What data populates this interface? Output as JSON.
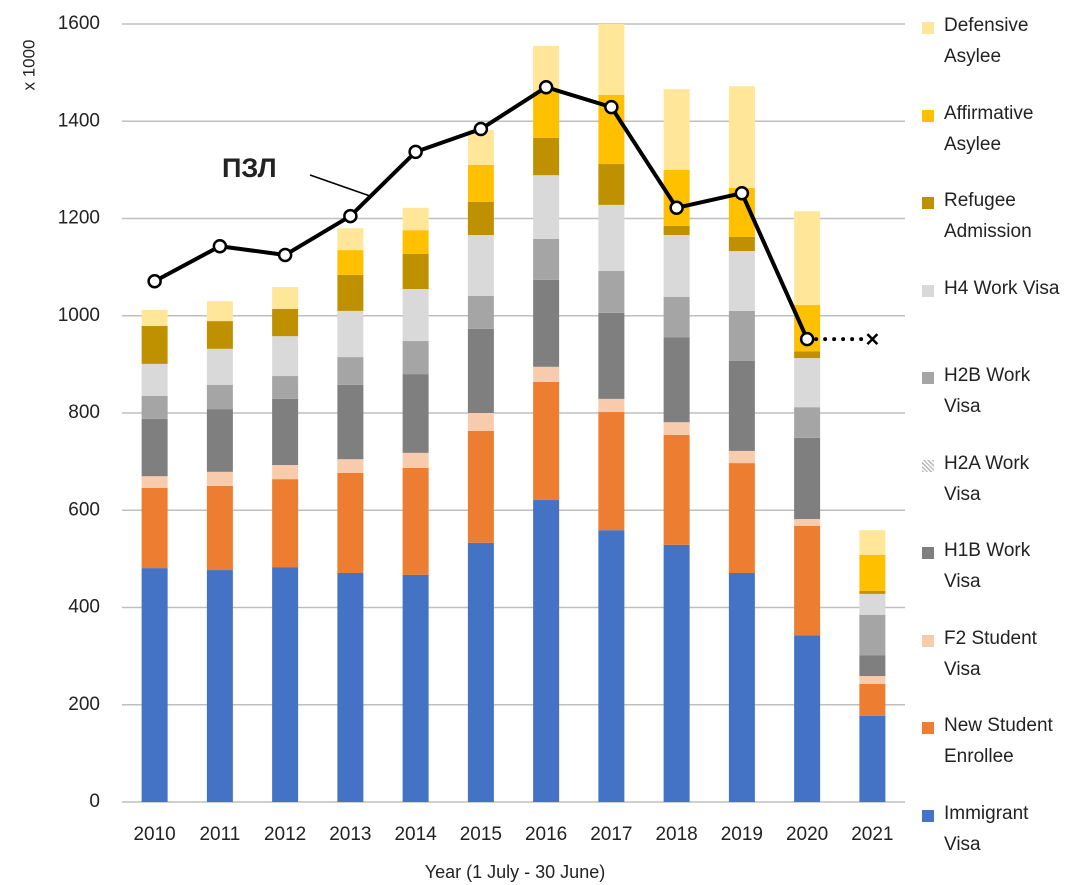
{
  "chart_data": {
    "type": "bar",
    "stacked": true,
    "y_axis_label": "x 1000",
    "x_axis_label": "Year (1 July - 30 June)",
    "categories": [
      "2010",
      "2011",
      "2012",
      "2013",
      "2014",
      "2015",
      "2016",
      "2017",
      "2018",
      "2019",
      "2020",
      "2021"
    ],
    "ylim": [
      0,
      1600
    ],
    "yticks": [
      0,
      200,
      400,
      600,
      800,
      1000,
      1200,
      1400,
      1600
    ],
    "grid": true,
    "legend": "right",
    "series": [
      {
        "name": "Immigrant Visa",
        "color": "#4472c4",
        "values": [
          481,
          477,
          483,
          471,
          467,
          533,
          621,
          559,
          529,
          471,
          343,
          177
        ]
      },
      {
        "name": "New Student Enrollee",
        "color": "#ed7d31",
        "values": [
          165,
          173,
          181,
          206,
          220,
          230,
          243,
          243,
          226,
          226,
          225,
          66
        ]
      },
      {
        "name": "F2 Student Visa",
        "color": "#f8cbad",
        "values": [
          24,
          29,
          29,
          28,
          31,
          37,
          31,
          27,
          26,
          25,
          14,
          16
        ]
      },
      {
        "name": "H1B Work Visa",
        "color": "#7f7f7f",
        "values": [
          118,
          129,
          136,
          153,
          162,
          173,
          179,
          177,
          175,
          185,
          167,
          43
        ]
      },
      {
        "name": "H2A Work Visa",
        "color": "#bfbfbf",
        "pattern": "diagonal",
        "values": [
          0,
          0,
          0,
          0,
          0,
          0,
          0,
          0,
          0,
          0,
          0,
          0
        ]
      },
      {
        "name": "H2B Work Visa",
        "color": "#a5a5a5",
        "values": [
          47,
          50,
          47,
          57,
          68,
          68,
          84,
          86,
          83,
          103,
          63,
          83
        ]
      },
      {
        "name": "H4 Work Visa",
        "color": "#d9d9d9",
        "values": [
          66,
          74,
          82,
          95,
          107,
          125,
          131,
          136,
          127,
          123,
          101,
          43
        ]
      },
      {
        "name": "Refugee Admission",
        "color": "#bf9000",
        "values": [
          78,
          57,
          56,
          74,
          72,
          68,
          77,
          84,
          19,
          29,
          14,
          6
        ]
      },
      {
        "name": "Affirmative Asylee",
        "color": "#ffc000",
        "values": [
          0,
          0,
          0,
          51,
          49,
          76,
          94,
          142,
          115,
          101,
          95,
          74
        ]
      },
      {
        "name": "Defensive Asylee",
        "color": "#ffe699",
        "values": [
          33,
          41,
          45,
          45,
          46,
          72,
          95,
          146,
          166,
          209,
          193,
          51
        ]
      }
    ],
    "line": {
      "name": "ПЗЛ",
      "color": "#000000",
      "values": [
        1071,
        1143,
        1125,
        1205,
        1337,
        1384,
        1470,
        1429,
        1222,
        1252,
        952,
        952
      ],
      "last_segment_style": "dotted"
    }
  }
}
